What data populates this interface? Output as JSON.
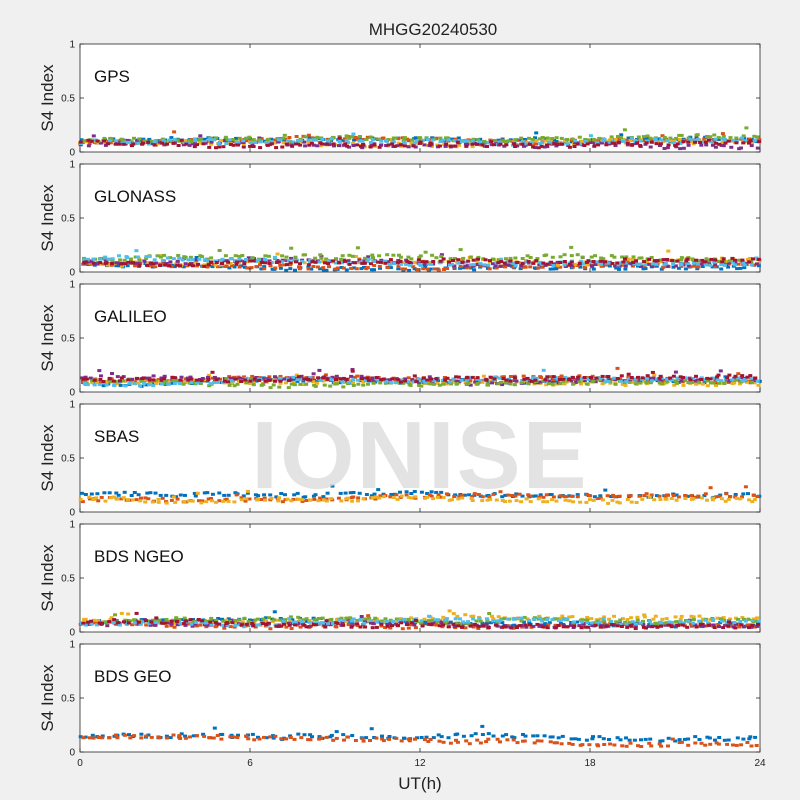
{
  "chart_data": {
    "type": "scatter",
    "title": "MHGG20240530",
    "xlabel": "UT(h)",
    "ylabel": "S4 Index",
    "xlim": [
      0,
      24
    ],
    "ylim": [
      0,
      1
    ],
    "xticks": [
      0,
      6,
      12,
      18,
      24
    ],
    "yticks": [
      0,
      0.5,
      1
    ],
    "watermark": "IONISE",
    "panels": [
      {
        "name": "GPS",
        "series": [
          {
            "color": "#0072BD",
            "base": 0.07
          },
          {
            "color": "#D95319",
            "base": 0.08
          },
          {
            "color": "#EDB120",
            "base": 0.08
          },
          {
            "color": "#7E2F8E",
            "base": 0.07
          },
          {
            "color": "#77AC30",
            "base": 0.09
          },
          {
            "color": "#4DBEEE",
            "base": 0.06
          },
          {
            "color": "#A2142F",
            "base": 0.08
          }
        ]
      },
      {
        "name": "GLONASS",
        "series": [
          {
            "color": "#0072BD",
            "base": 0.05
          },
          {
            "color": "#D95319",
            "base": 0.06
          },
          {
            "color": "#EDB120",
            "base": 0.07
          },
          {
            "color": "#7E2F8E",
            "base": 0.06
          },
          {
            "color": "#77AC30",
            "base": 0.09
          },
          {
            "color": "#4DBEEE",
            "base": 0.1
          },
          {
            "color": "#A2142F",
            "base": 0.06
          }
        ]
      },
      {
        "name": "GALILEO",
        "series": [
          {
            "color": "#0072BD",
            "base": 0.07
          },
          {
            "color": "#D95319",
            "base": 0.08
          },
          {
            "color": "#EDB120",
            "base": 0.08
          },
          {
            "color": "#7E2F8E",
            "base": 0.09
          },
          {
            "color": "#77AC30",
            "base": 0.08
          },
          {
            "color": "#4DBEEE",
            "base": 0.07
          },
          {
            "color": "#A2142F",
            "base": 0.09
          }
        ]
      },
      {
        "name": "SBAS",
        "series": [
          {
            "color": "#0072BD",
            "base": 0.16
          },
          {
            "color": "#D95319",
            "base": 0.1
          },
          {
            "color": "#EDB120",
            "base": 0.12
          }
        ]
      },
      {
        "name": "BDS NGEO",
        "series": [
          {
            "color": "#0072BD",
            "base": 0.06
          },
          {
            "color": "#D95319",
            "base": 0.07
          },
          {
            "color": "#EDB120",
            "base": 0.08
          },
          {
            "color": "#7E2F8E",
            "base": 0.06
          },
          {
            "color": "#77AC30",
            "base": 0.07
          },
          {
            "color": "#4DBEEE",
            "base": 0.06
          },
          {
            "color": "#A2142F",
            "base": 0.07
          }
        ]
      },
      {
        "name": "BDS GEO",
        "series": [
          {
            "color": "#0072BD",
            "base": 0.1
          },
          {
            "color": "#D95319",
            "base": 0.09
          }
        ]
      }
    ]
  }
}
